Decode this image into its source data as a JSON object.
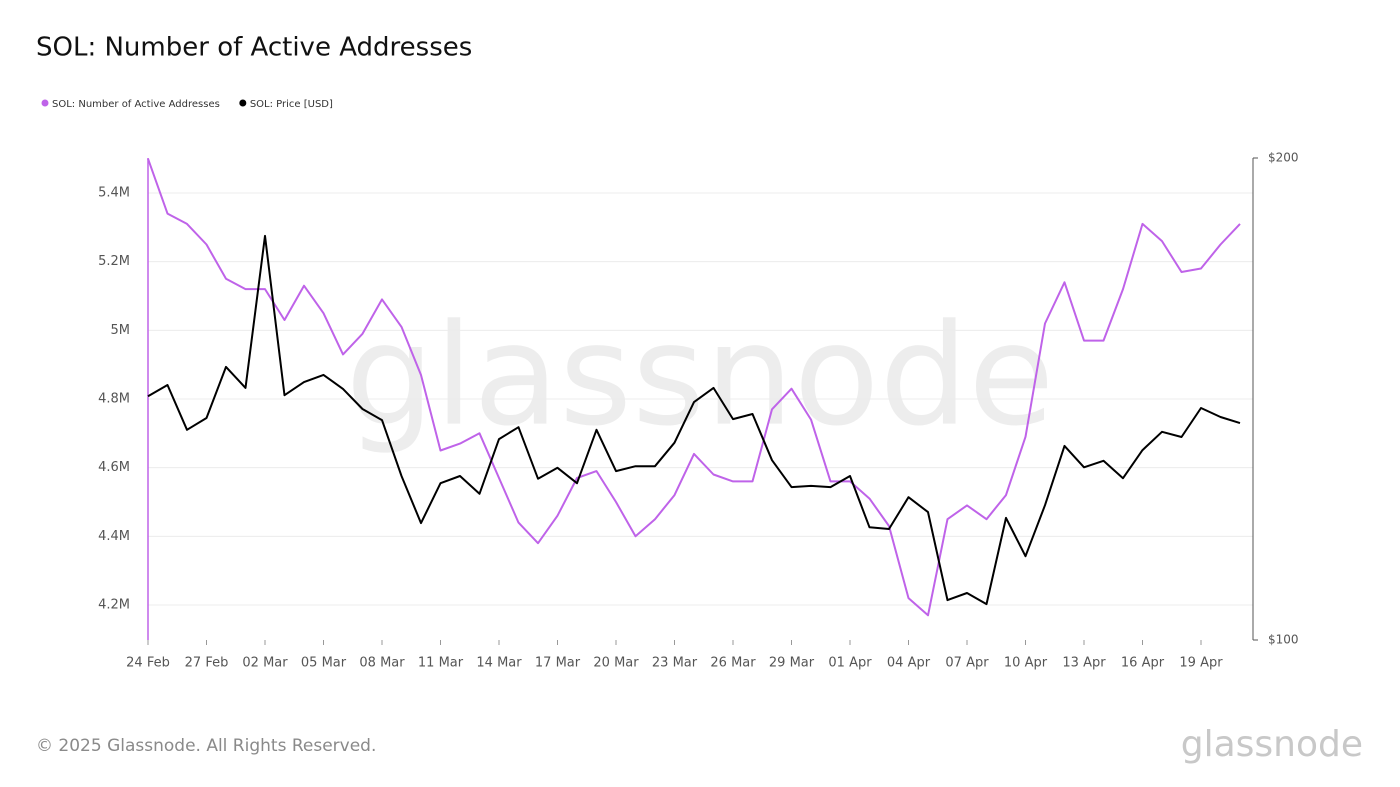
{
  "chart_data": {
    "type": "line",
    "title": "SOL: Number of Active Addresses",
    "watermark": "glassnode",
    "categories": [
      "24 Feb",
      null,
      null,
      "27 Feb",
      null,
      null,
      "02 Mar",
      null,
      null,
      "05 Mar",
      null,
      null,
      "08 Mar",
      null,
      null,
      "11 Mar",
      null,
      null,
      "14 Mar",
      null,
      null,
      "17 Mar",
      null,
      null,
      "20 Mar",
      null,
      null,
      "23 Mar",
      null,
      null,
      "26 Mar",
      null,
      null,
      "29 Mar",
      null,
      null,
      "01 Apr",
      null,
      null,
      "04 Apr",
      null,
      null,
      "07 Apr",
      null,
      null,
      "10 Apr",
      null,
      null,
      "13 Apr",
      null,
      null,
      "16 Apr",
      null,
      null,
      "19 Apr",
      null,
      null
    ],
    "series": [
      {
        "name": "SOL: Number of Active Addresses",
        "color": "#bf63e9",
        "axis": "y",
        "values": [
          5500000,
          5340000,
          5310000,
          5250000,
          5150000,
          5120000,
          5120000,
          5030000,
          5130000,
          5050000,
          4930000,
          4990000,
          5090000,
          5010000,
          4870000,
          4650000,
          4670000,
          4700000,
          4570000,
          4440000,
          4380000,
          4460000,
          4570000,
          4590000,
          4500000,
          4400000,
          4450000,
          4520000,
          4640000,
          4580000,
          4560000,
          4560000,
          4770000,
          4830000,
          4740000,
          4560000,
          4560000,
          4510000,
          4430000,
          4220000,
          4170000,
          4450000,
          4490000,
          4450000,
          4520000,
          4690000,
          5020000,
          5140000,
          4970000,
          4970000,
          5120000,
          5310000,
          5260000,
          5170000,
          5180000,
          5250000,
          5310000
        ]
      },
      {
        "name": "SOL: Price [USD]",
        "color": "#000000",
        "axis": "y2",
        "values": [
          142,
          144.3,
          135.3,
          137.6,
          148.1,
          143.7,
          178.8,
          142.2,
          144.9,
          146.4,
          143.5,
          139.4,
          137.2,
          126.6,
          118.3,
          125.3,
          126.6,
          123.4,
          133.5,
          135.8,
          126.1,
          128.1,
          125.3,
          135.3,
          127.5,
          128.4,
          128.4,
          132.8,
          140.8,
          143.7,
          137.4,
          138.4,
          129.5,
          124.6,
          124.8,
          124.6,
          126.6,
          117.6,
          117.3,
          122.8,
          120.2,
          105.9,
          107,
          105.3,
          119.2,
          112.8,
          121.4,
          132.2,
          128.2,
          129.4,
          126.2,
          131.4,
          134.9,
          133.9,
          139.6,
          137.8,
          136.6
        ]
      }
    ],
    "ylim": [
      4098000,
      5502000
    ],
    "yticks": [
      {
        "value": 4200000,
        "label": "4.2M"
      },
      {
        "value": 4400000,
        "label": "4.4M"
      },
      {
        "value": 4600000,
        "label": "4.6M"
      },
      {
        "value": 4800000,
        "label": "4.8M"
      },
      {
        "value": 5000000,
        "label": "5M"
      },
      {
        "value": 5200000,
        "label": "5.2M"
      },
      {
        "value": 5400000,
        "label": "5.4M"
      }
    ],
    "y2lim": [
      100,
      200
    ],
    "y2ticks": [
      {
        "value": 100,
        "label": "$100"
      },
      {
        "value": 200,
        "label": "$200"
      }
    ],
    "y2scale": "log",
    "grid": true,
    "legend": "top-left"
  },
  "footer": {
    "copyright": "© 2025 Glassnode. All Rights Reserved.",
    "logo": "glassnode"
  }
}
